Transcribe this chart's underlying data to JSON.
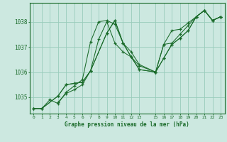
{
  "title": "Graphe pression niveau de la mer (hPa)",
  "background_color": "#cce8e0",
  "grid_color": "#99ccbb",
  "line_color": "#1a6b2a",
  "xlim": [
    -0.5,
    23.5
  ],
  "ylim": [
    1034.35,
    1038.75
  ],
  "yticks": [
    1035,
    1036,
    1037,
    1038
  ],
  "xtick_vals": [
    0,
    1,
    2,
    3,
    4,
    5,
    6,
    7,
    8,
    9,
    10,
    11,
    12,
    13,
    15,
    16,
    17,
    18,
    19,
    20,
    21,
    22,
    23
  ],
  "xtick_labels": [
    "0",
    "1",
    "2",
    "3",
    "4",
    "5",
    "6",
    "7",
    "8",
    "9",
    "10",
    "11",
    "12",
    "13",
    "15",
    "16",
    "17",
    "18",
    "19",
    "20",
    "21",
    "22",
    "23"
  ],
  "series": [
    {
      "x": [
        0,
        1,
        2,
        3,
        4,
        5,
        6,
        7,
        8,
        9,
        10,
        11,
        12,
        13,
        15,
        16,
        17,
        18,
        19,
        20,
        21,
        22,
        23
      ],
      "y": [
        1034.55,
        1034.55,
        1034.9,
        1034.75,
        1035.2,
        1035.45,
        1035.7,
        1037.2,
        1038.0,
        1038.05,
        1037.9,
        1037.15,
        1036.6,
        1036.1,
        1036.0,
        1036.55,
        1037.1,
        1037.35,
        1037.65,
        1038.2,
        1038.45,
        1038.05,
        1038.2
      ]
    },
    {
      "x": [
        0,
        1,
        3,
        4,
        5,
        6,
        7,
        9,
        10,
        11,
        12,
        13,
        15,
        16,
        17,
        18,
        19,
        20,
        21,
        22,
        23
      ],
      "y": [
        1034.55,
        1034.55,
        1035.05,
        1035.5,
        1035.55,
        1035.6,
        1036.05,
        1037.55,
        1038.05,
        1037.15,
        1036.8,
        1036.3,
        1036.0,
        1037.1,
        1037.65,
        1037.7,
        1037.95,
        1038.2,
        1038.45,
        1038.05,
        1038.2
      ]
    },
    {
      "x": [
        0,
        1,
        3,
        4,
        5,
        6,
        7,
        9,
        10,
        11,
        12,
        13,
        15,
        16,
        17,
        18,
        19,
        20,
        21,
        22,
        23
      ],
      "y": [
        1034.55,
        1034.55,
        1035.05,
        1035.5,
        1035.55,
        1035.6,
        1036.05,
        1037.55,
        1038.05,
        1037.15,
        1036.6,
        1036.25,
        1036.0,
        1037.1,
        1037.15,
        1037.5,
        1037.85,
        1038.2,
        1038.45,
        1038.05,
        1038.2
      ]
    },
    {
      "x": [
        3,
        4,
        5,
        6,
        7,
        8,
        9,
        10,
        11,
        12,
        13,
        15,
        16,
        17,
        18,
        19,
        20,
        21,
        22,
        23
      ],
      "y": [
        1034.8,
        1035.15,
        1035.3,
        1035.5,
        1036.05,
        1037.3,
        1038.0,
        1037.15,
        1036.8,
        1036.6,
        1036.1,
        1036.0,
        1036.55,
        1037.1,
        1037.35,
        1037.65,
        1038.2,
        1038.45,
        1038.05,
        1038.2
      ]
    }
  ]
}
